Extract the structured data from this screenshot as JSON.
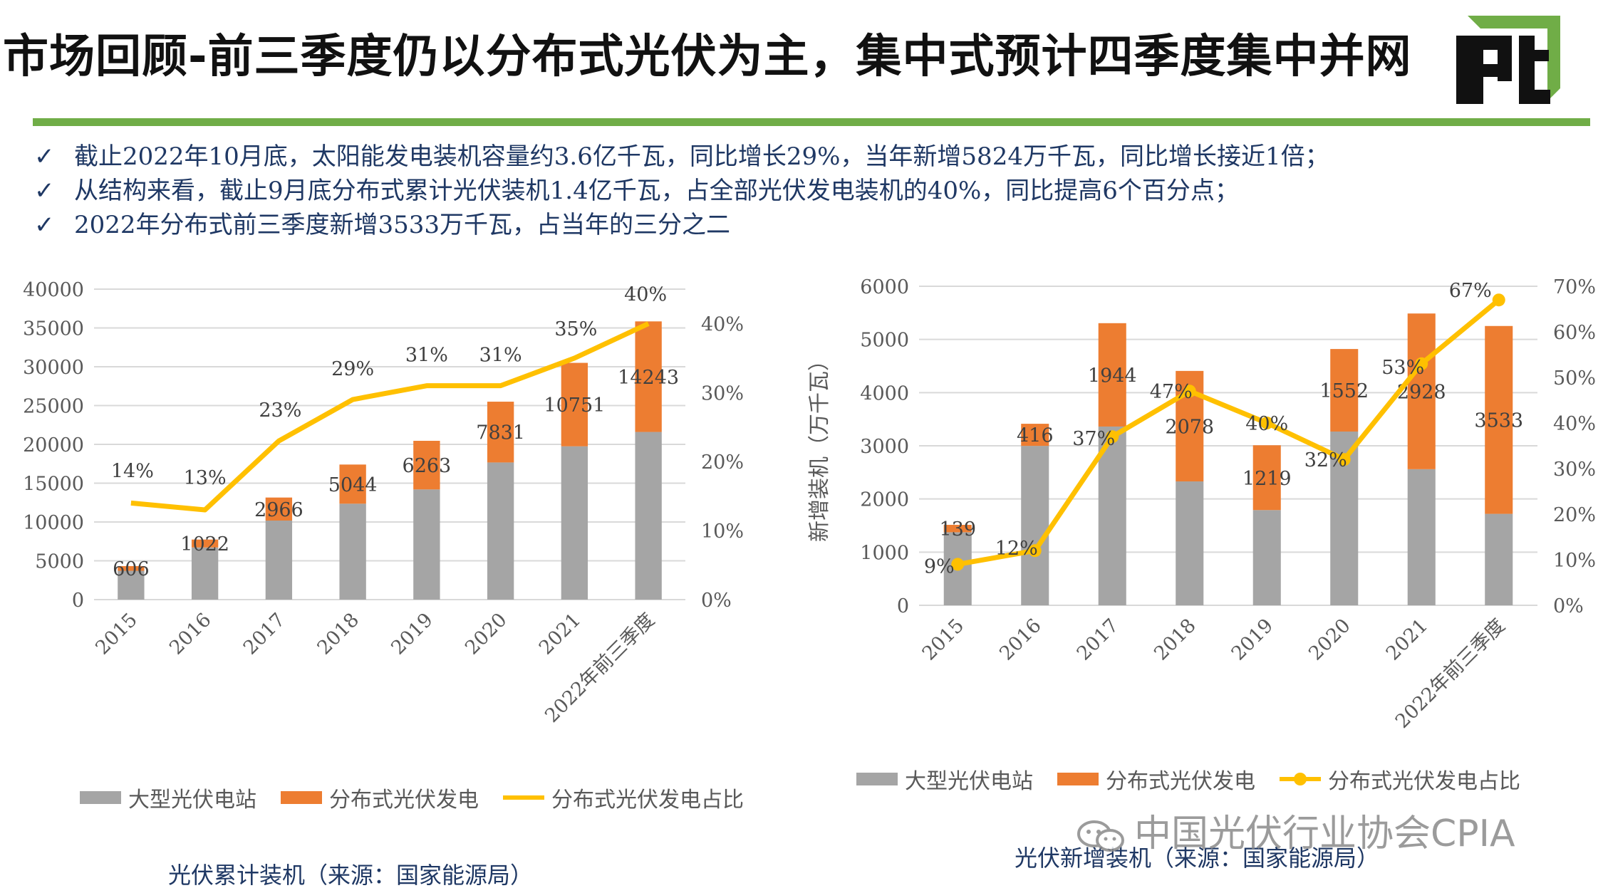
{
  "title": "市场回顾-前三季度仍以分布式光伏为主，集中式预计四季度集中并网",
  "bullets": [
    "截止2022年10月底，太阳能发电装机容量约3.6亿千瓦，同比增长29%，当年新增5824万千瓦，同比增长接近1倍；",
    "从结构来看，截止9月底分布式累计光伏装机1.4亿千瓦，占全部光伏发电装机的40%，同比提高6个百分点；",
    "2022年分布式前三季度新增3533万千瓦，占当年的三分之二"
  ],
  "bullet_mark": "✓",
  "colors": {
    "gray": "#a5a5a5",
    "orange": "#ed7d31",
    "yellow": "#ffc000",
    "green": "#70ad47",
    "navy": "#1f3864"
  },
  "legend": {
    "large": "大型光伏电站",
    "distributed": "分布式光伏发电",
    "share": "分布式光伏发电占比"
  },
  "captions": {
    "left": "光伏累计装机（来源：国家能源局）",
    "right": "光伏新增装机（来源：国家能源局）"
  },
  "watermark": "中国光伏行业协会CPIA",
  "chart_data": [
    {
      "type": "bar",
      "stacked": true,
      "categories": [
        "2015",
        "2016",
        "2017",
        "2018",
        "2019",
        "2020",
        "2021",
        "2022年前三季度"
      ],
      "series": [
        {
          "name": "大型光伏电站",
          "values": [
            3712,
            6716,
            10184,
            12356,
            14194,
            17669,
            19750,
            21600
          ]
        },
        {
          "name": "分布式光伏发电",
          "values": [
            606,
            1022,
            2966,
            5044,
            6263,
            7831,
            10751,
            14243
          ]
        }
      ],
      "line": {
        "name": "分布式光伏发电占比",
        "values": [
          14,
          13,
          23,
          29,
          31,
          31,
          35,
          40
        ]
      },
      "bar_labels": [
        "606",
        "1022",
        "2966",
        "5044",
        "6263",
        "7831",
        "10751",
        "14243"
      ],
      "line_labels": [
        "14%",
        "13%",
        "23%",
        "29%",
        "31%",
        "31%",
        "35%",
        "40%"
      ],
      "ylim": [
        0,
        40000
      ],
      "yticks": [
        "0",
        "5000",
        "10000",
        "15000",
        "20000",
        "25000",
        "30000",
        "35000",
        "40000"
      ],
      "y2lim": [
        0,
        45
      ],
      "y2ticks": [
        "0%",
        "10%",
        "20%",
        "30%",
        "40%"
      ],
      "ylabel": "",
      "grid": true,
      "legend_position": "bottom"
    },
    {
      "type": "bar",
      "stacked": true,
      "categories": [
        "2015",
        "2016",
        "2017",
        "2018",
        "2019",
        "2020",
        "2021",
        "2022年前三季度"
      ],
      "series": [
        {
          "name": "大型光伏电站",
          "values": [
            1374,
            2998,
            3362,
            2330,
            1791,
            3268,
            2560,
            1720
          ]
        },
        {
          "name": "分布式光伏发电",
          "values": [
            139,
            416,
            1944,
            2078,
            1219,
            1552,
            2928,
            3533
          ]
        }
      ],
      "line": {
        "name": "分布式光伏发电占比",
        "values": [
          9,
          12,
          37,
          47,
          40,
          32,
          53,
          67
        ]
      },
      "bar_labels": [
        "139",
        "416",
        "1944",
        "2078",
        "1219",
        "1552",
        "2928",
        "3533"
      ],
      "line_labels": [
        "9%",
        "12%",
        "37%",
        "47%",
        "40%",
        "32%",
        "53%",
        "67%"
      ],
      "ylim": [
        0,
        6000
      ],
      "yticks": [
        "0",
        "1000",
        "2000",
        "3000",
        "4000",
        "5000",
        "6000"
      ],
      "y2lim": [
        0,
        70
      ],
      "y2ticks": [
        "0%",
        "10%",
        "20%",
        "30%",
        "40%",
        "50%",
        "60%",
        "70%"
      ],
      "ylabel": "新增装机（万千瓦）",
      "grid": true,
      "legend_position": "bottom"
    }
  ]
}
